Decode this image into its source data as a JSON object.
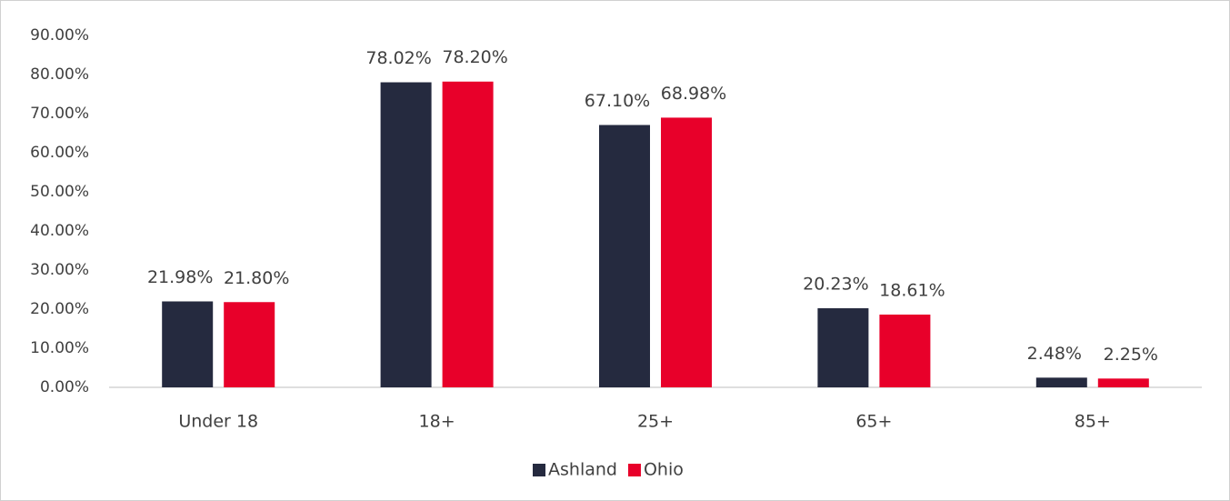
{
  "chart_data": {
    "type": "bar",
    "categories": [
      "Under 18",
      "18+",
      "25+",
      "65+",
      "85+"
    ],
    "series": [
      {
        "name": "Ashland",
        "color": "#252a3f",
        "values": [
          21.98,
          78.02,
          67.1,
          20.23,
          2.48
        ],
        "value_labels": [
          "21.98%",
          "78.02%",
          "67.10%",
          "20.23%",
          "2.48%"
        ]
      },
      {
        "name": "Ohio",
        "color": "#e8002a",
        "values": [
          21.8,
          78.2,
          68.98,
          18.61,
          2.25
        ],
        "value_labels": [
          "21.80%",
          "78.20%",
          "68.98%",
          "18.61%",
          "2.25%"
        ]
      }
    ],
    "ylim": [
      0,
      90
    ],
    "yticks": [
      {
        "value": 0,
        "label": "0.00%"
      },
      {
        "value": 10,
        "label": "10.00%"
      },
      {
        "value": 20,
        "label": "20.00%"
      },
      {
        "value": 30,
        "label": "30.00%"
      },
      {
        "value": 40,
        "label": "40.00%"
      },
      {
        "value": 50,
        "label": "50.00%"
      },
      {
        "value": 60,
        "label": "60.00%"
      },
      {
        "value": 70,
        "label": "70.00%"
      },
      {
        "value": 80,
        "label": "80.00%"
      },
      {
        "value": 90,
        "label": "90.00%"
      }
    ],
    "grid": false,
    "legend": "bottom"
  }
}
